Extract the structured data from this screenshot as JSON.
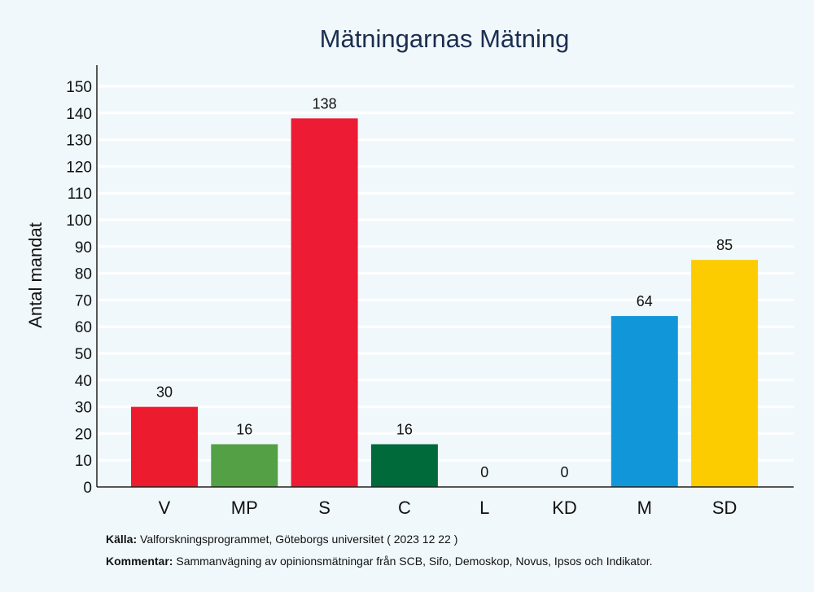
{
  "chart_data": {
    "type": "bar",
    "title": "Mätningarnas Mätning",
    "xlabel": "",
    "ylabel": "Antal mandat",
    "ylim": [
      0,
      155
    ],
    "yticks": [
      0,
      10,
      20,
      30,
      40,
      50,
      60,
      70,
      80,
      90,
      100,
      110,
      120,
      130,
      140,
      150
    ],
    "grid": true,
    "categories": [
      "V",
      "MP",
      "S",
      "C",
      "L",
      "KD",
      "M",
      "SD"
    ],
    "values": [
      30,
      16,
      138,
      16,
      0,
      0,
      64,
      85
    ],
    "colors": [
      "#ed1b2e",
      "#53a045",
      "#ed1b34",
      "#016a3a",
      "#006ab3",
      "#005ea1",
      "#1296da",
      "#fdcc00"
    ],
    "data_labels": [
      "30",
      "16",
      "138",
      "16",
      "0",
      "0",
      "64",
      "85"
    ]
  },
  "footer": {
    "source_label": "Källa:",
    "source_text": "Valforskningsprogrammet, Göteborgs universitet ( 2023 12 22 )",
    "comment_label": "Kommentar:",
    "comment_text": "Sammanvägning av opinionsmätningar från SCB, Sifo, Demoskop, Novus, Ipsos och Indikator."
  }
}
